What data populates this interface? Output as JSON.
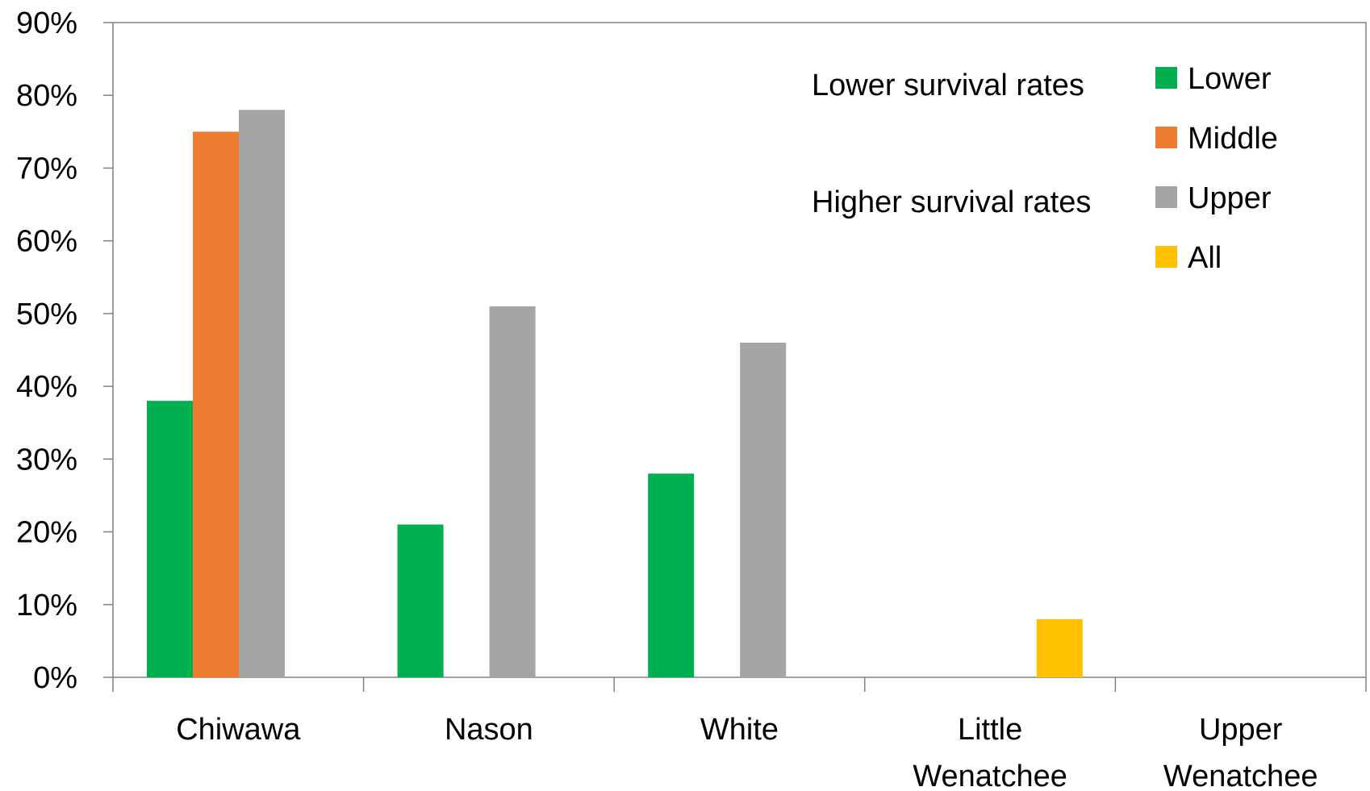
{
  "chart_data": {
    "type": "bar",
    "categories": [
      [
        "Chiwawa"
      ],
      [
        "Nason"
      ],
      [
        "White"
      ],
      [
        "Little",
        "Wenatchee"
      ],
      [
        "Upper",
        "Wenatchee"
      ]
    ],
    "series": [
      {
        "name": "Lower",
        "color": "#00b050",
        "values": [
          38,
          21,
          28,
          null,
          null
        ]
      },
      {
        "name": "Middle",
        "color": "#ed7d31",
        "values": [
          75,
          null,
          null,
          null,
          null
        ]
      },
      {
        "name": "Upper",
        "color": "#a5a5a5",
        "values": [
          78,
          51,
          46,
          null,
          null
        ]
      },
      {
        "name": "All",
        "color": "#ffc000",
        "values": [
          null,
          null,
          null,
          8,
          null
        ]
      }
    ],
    "ylim": [
      0,
      90
    ],
    "yticks": [
      0,
      10,
      20,
      30,
      40,
      50,
      60,
      70,
      80,
      90
    ],
    "ytick_format": "percent",
    "legend_position": "top-right",
    "annotations": [
      "Lower survival rates",
      "Higher survival rates"
    ],
    "grid": false
  }
}
